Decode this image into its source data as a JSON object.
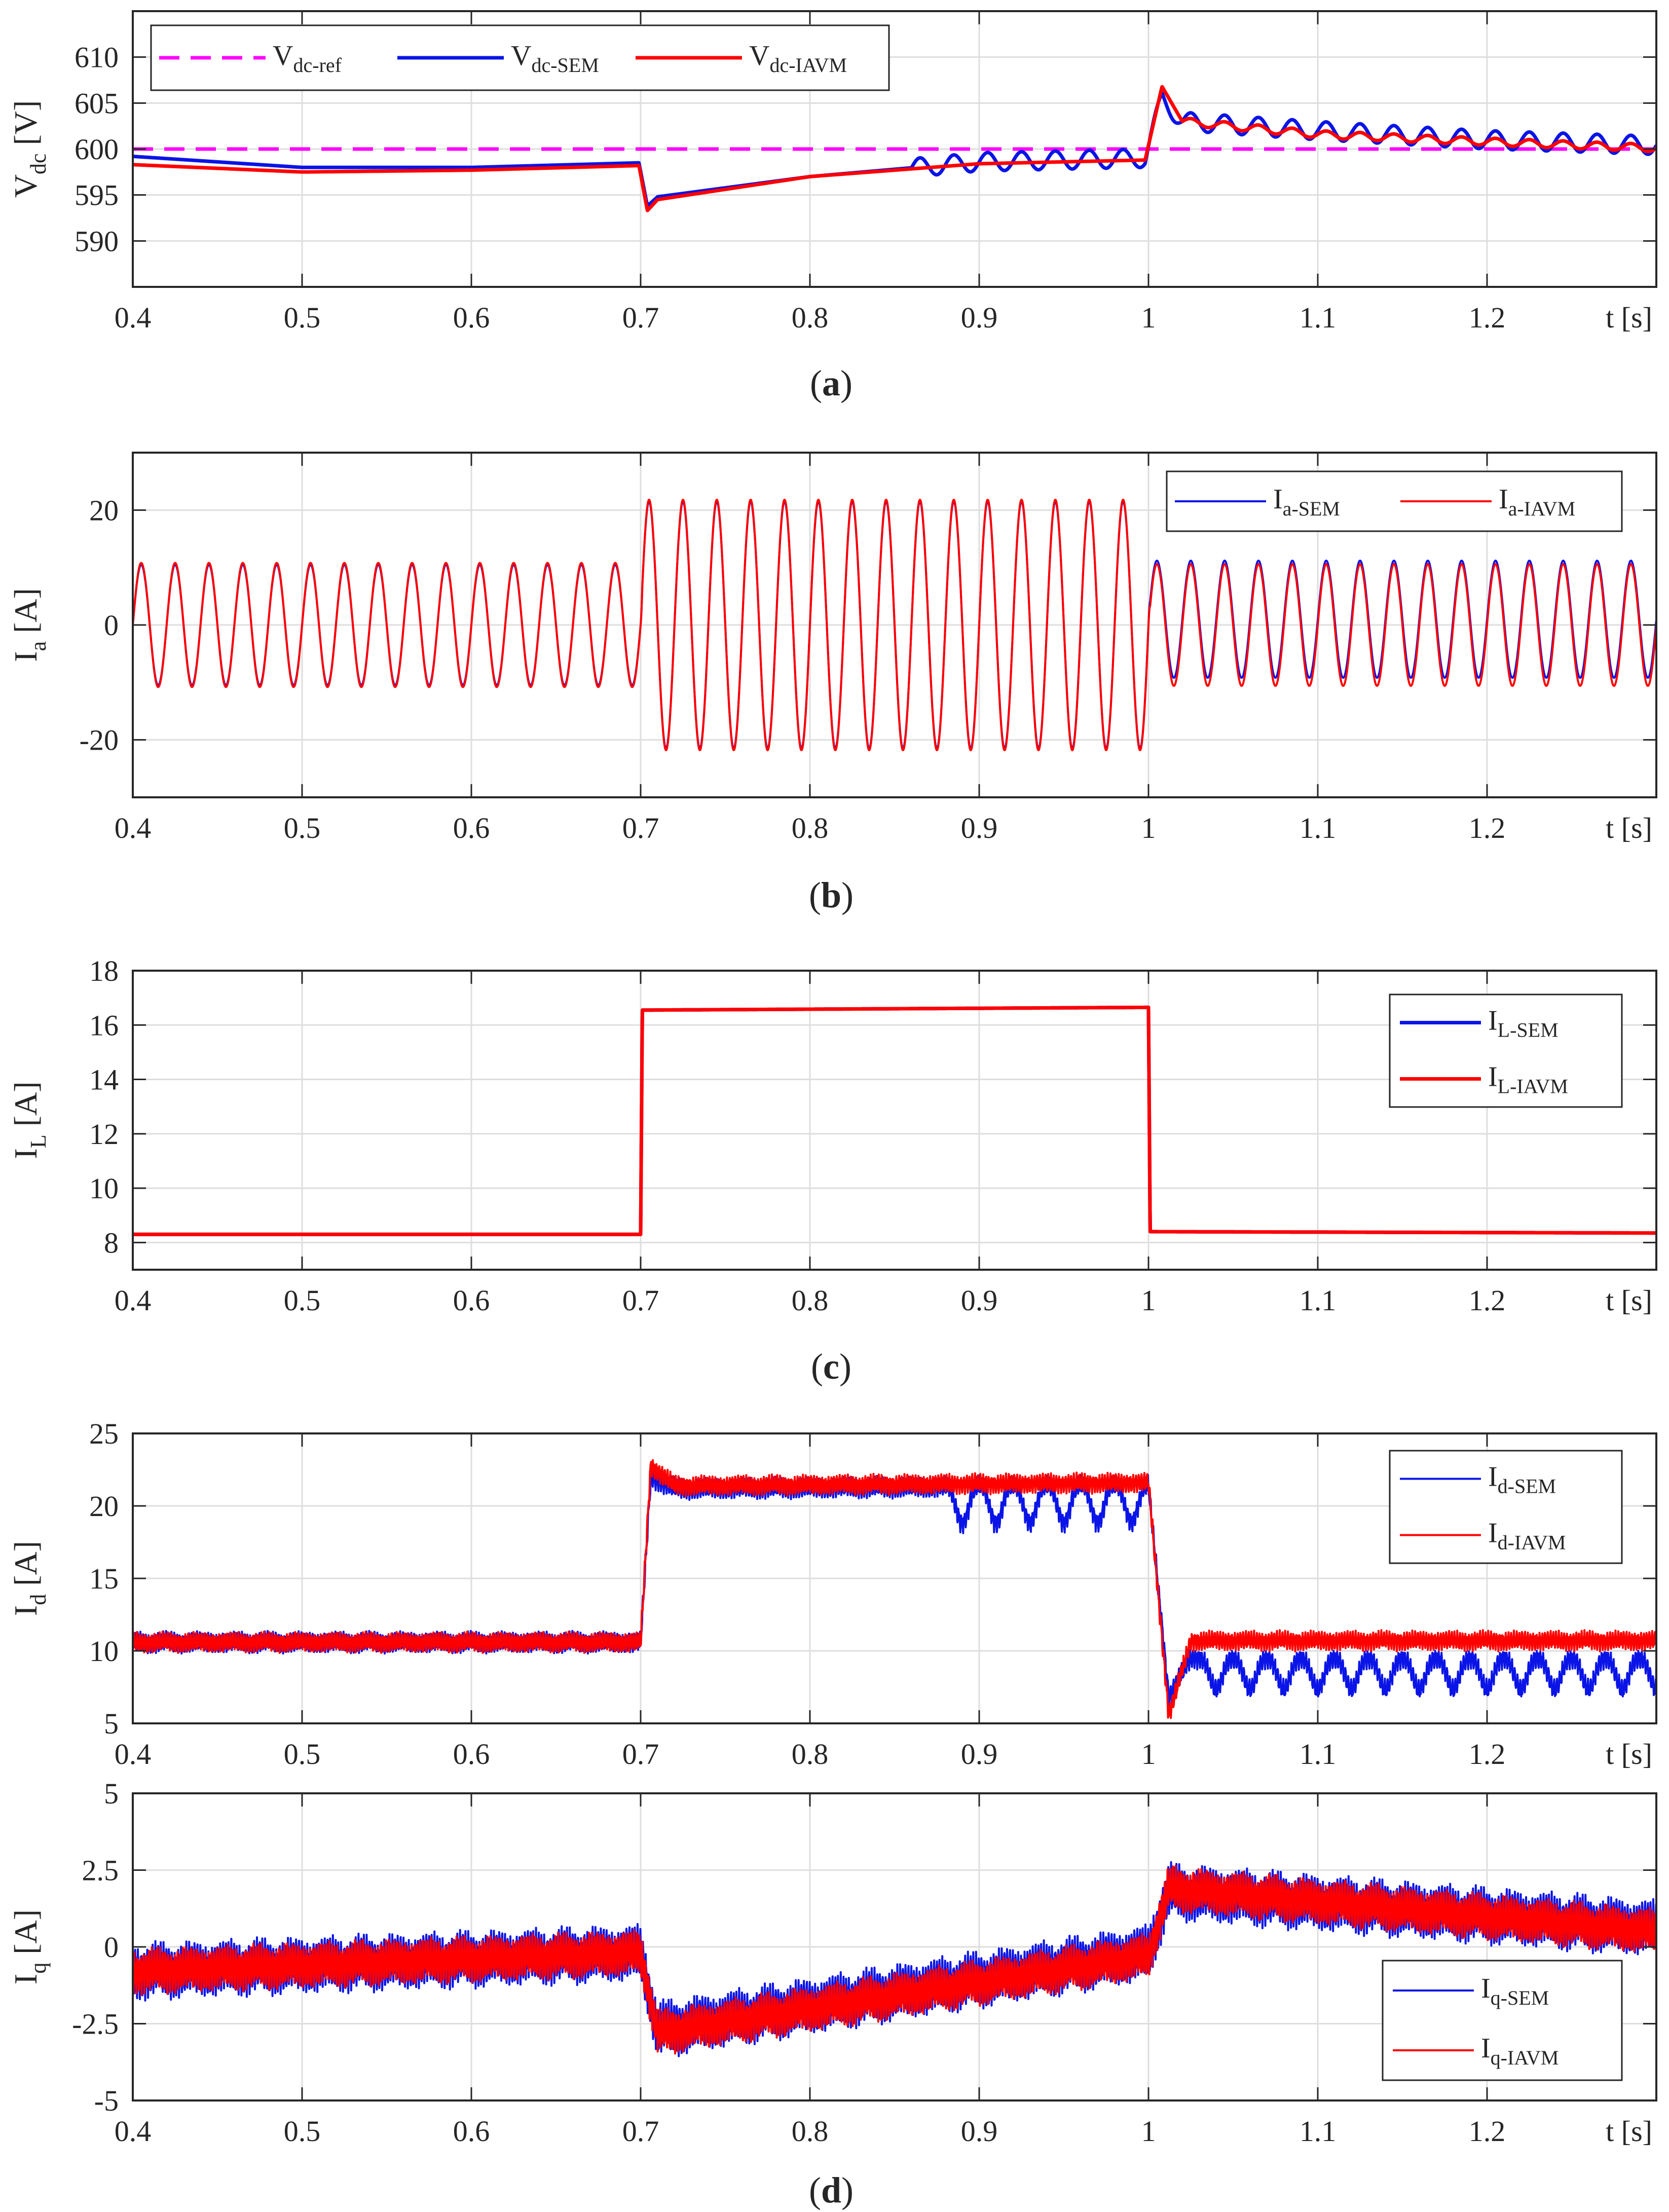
{
  "colors": {
    "sem": "#0a14e6",
    "iavm": "#ff0000",
    "ref": "#ff00ff",
    "axis": "#262626",
    "grid": "#dedede"
  },
  "chart_data": [
    {
      "type": "line",
      "id": "vdc",
      "caption": "(a)",
      "caption_bold": "a",
      "ylabel_main": "V",
      "ylabel_sub": "dc",
      "ylabel_unit": "[V]",
      "xlabel": "t [s]",
      "xlim": [
        0.4,
        1.3
      ],
      "ylim": [
        585,
        615
      ],
      "xticks": [
        0.4,
        0.5,
        0.6,
        0.7,
        0.8,
        0.9,
        1.0,
        1.1,
        1.2
      ],
      "xtick_labels": [
        "0.4",
        "0.5",
        "0.6",
        "0.7",
        "0.8",
        "0.9",
        "1",
        "1.1",
        "1.2"
      ],
      "yticks": [
        590,
        595,
        600,
        605,
        610
      ],
      "ytick_labels": [
        "590",
        "595",
        "600",
        "605",
        "610"
      ],
      "legend_position": "top-left",
      "legend_horizontal": true,
      "series": [
        {
          "name_main": "V",
          "name_sub": "dc-ref",
          "color": "#ff00ff",
          "dash": true,
          "keypoints": [
            [
              0.4,
              600
            ],
            [
              1.3,
              600
            ]
          ]
        },
        {
          "name_main": "V",
          "name_sub": "dc-SEM",
          "color": "#0a14e6",
          "keypoints": [
            [
              0.4,
              599.2
            ],
            [
              0.5,
              598.0
            ],
            [
              0.6,
              598.0
            ],
            [
              0.699,
              598.5
            ],
            [
              0.704,
              593.8
            ],
            [
              0.71,
              594.8
            ],
            [
              0.8,
              597.0
            ],
            [
              0.9,
              598.6
            ],
            [
              0.998,
              599.0
            ],
            [
              1.008,
              605.5
            ],
            [
              1.02,
              603.0
            ],
            [
              1.1,
              602.0
            ],
            [
              1.2,
              601.0
            ],
            [
              1.3,
              600.4
            ]
          ],
          "ripple": {
            "start": 0.86,
            "amp": 1.0,
            "freq": 50
          }
        },
        {
          "name_main": "V",
          "name_sub": "dc-IAVM",
          "color": "#ff0000",
          "keypoints": [
            [
              0.4,
              598.3
            ],
            [
              0.5,
              597.5
            ],
            [
              0.6,
              597.7
            ],
            [
              0.699,
              598.2
            ],
            [
              0.704,
              593.3
            ],
            [
              0.71,
              594.5
            ],
            [
              0.8,
              597.0
            ],
            [
              0.9,
              598.4
            ],
            [
              0.998,
              598.8
            ],
            [
              1.008,
              606.8
            ],
            [
              1.02,
              603.0
            ],
            [
              1.1,
              601.6
            ],
            [
              1.2,
              600.8
            ],
            [
              1.3,
              600.1
            ]
          ],
          "ripple": {
            "start": 1.02,
            "amp": 0.4,
            "freq": 50
          }
        }
      ]
    },
    {
      "type": "line",
      "id": "ia",
      "caption": "(b)",
      "caption_bold": "b",
      "ylabel_main": "I",
      "ylabel_sub": "a",
      "ylabel_unit": "[A]",
      "xlabel": "t [s]",
      "xlim": [
        0.4,
        1.3
      ],
      "ylim": [
        -30,
        30
      ],
      "xticks": [
        0.4,
        0.5,
        0.6,
        0.7,
        0.8,
        0.9,
        1.0,
        1.1,
        1.2
      ],
      "xtick_labels": [
        "0.4",
        "0.5",
        "0.6",
        "0.7",
        "0.8",
        "0.9",
        "1",
        "1.1",
        "1.2"
      ],
      "yticks": [
        -20,
        0,
        20
      ],
      "ytick_labels": [
        "-20",
        "0",
        "20"
      ],
      "legend_position": "top-right",
      "legend_horizontal": true,
      "series": [
        {
          "name_main": "I",
          "name_sub": "a-SEM",
          "color": "#0a14e6",
          "sine": {
            "freq": 50,
            "amps": [
              [
                0.4,
                10.5
              ],
              [
                0.7,
                10.5
              ],
              [
                0.701,
                21.5
              ],
              [
                1.0,
                21.5
              ],
              [
                1.001,
                10.2
              ],
              [
                1.3,
                10.2
              ]
            ],
            "offset": [
              [
                0.4,
                0
              ],
              [
                0.7,
                0
              ],
              [
                0.701,
                0
              ],
              [
                1.0,
                0
              ],
              [
                1.001,
                1.0
              ],
              [
                1.3,
                1.0
              ]
            ]
          }
        },
        {
          "name_main": "I",
          "name_sub": "a-IAVM",
          "color": "#ff0000",
          "sine": {
            "freq": 50,
            "amps": [
              [
                0.4,
                10.8
              ],
              [
                0.7,
                10.8
              ],
              [
                0.701,
                21.8
              ],
              [
                1.0,
                21.8
              ],
              [
                1.001,
                10.6
              ],
              [
                1.3,
                10.6
              ]
            ],
            "offset": [
              [
                0.4,
                0
              ],
              [
                1.3,
                0
              ]
            ]
          }
        }
      ]
    },
    {
      "type": "line",
      "id": "il",
      "caption": "(c)",
      "caption_bold": "c",
      "ylabel_main": "I",
      "ylabel_sub": "L",
      "ylabel_unit": "[A]",
      "xlabel": "t [s]",
      "xlim": [
        0.4,
        1.3
      ],
      "ylim": [
        7,
        18
      ],
      "xticks": [
        0.4,
        0.5,
        0.6,
        0.7,
        0.8,
        0.9,
        1.0,
        1.1,
        1.2
      ],
      "xtick_labels": [
        "0.4",
        "0.5",
        "0.6",
        "0.7",
        "0.8",
        "0.9",
        "1",
        "1.1",
        "1.2"
      ],
      "yticks": [
        8,
        10,
        12,
        14,
        16,
        18
      ],
      "ytick_labels": [
        "8",
        "10",
        "12",
        "14",
        "16",
        "18"
      ],
      "legend_position": "top-right",
      "legend_horizontal": false,
      "series": [
        {
          "name_main": "I",
          "name_sub": "L-SEM",
          "color": "#0a14e6",
          "keypoints": [
            [
              0.4,
              8.3
            ],
            [
              0.7,
              8.3
            ],
            [
              0.701,
              16.55
            ],
            [
              1.0,
              16.65
            ],
            [
              1.001,
              8.4
            ],
            [
              1.3,
              8.35
            ]
          ]
        },
        {
          "name_main": "I",
          "name_sub": "L-IAVM",
          "color": "#ff0000",
          "keypoints": [
            [
              0.4,
              8.3
            ],
            [
              0.7,
              8.3
            ],
            [
              0.701,
              16.55
            ],
            [
              1.0,
              16.65
            ],
            [
              1.001,
              8.4
            ],
            [
              1.3,
              8.35
            ]
          ]
        }
      ]
    },
    {
      "type": "line",
      "id": "id",
      "caption": "",
      "ylabel_main": "I",
      "ylabel_sub": "d",
      "ylabel_unit": "[A]",
      "xlabel": "t [s]",
      "xlim": [
        0.4,
        1.3
      ],
      "ylim": [
        5,
        25
      ],
      "xticks": [
        0.4,
        0.5,
        0.6,
        0.7,
        0.8,
        0.9,
        1.0,
        1.1,
        1.2
      ],
      "xtick_labels": [
        "0.4",
        "0.5",
        "0.6",
        "0.7",
        "0.8",
        "0.9",
        "1",
        "1.1",
        "1.2"
      ],
      "yticks": [
        5,
        10,
        15,
        20,
        25
      ],
      "ytick_labels": [
        "5",
        "10",
        "15",
        "20",
        "25"
      ],
      "legend_position": "top-right",
      "legend_horizontal": false,
      "series": [
        {
          "name_main": "I",
          "name_sub": "d-SEM",
          "color": "#0a14e6",
          "keypoints": [
            [
              0.4,
              10.6
            ],
            [
              0.7,
              10.6
            ],
            [
              0.706,
              22.0
            ],
            [
              0.72,
              21.2
            ],
            [
              1.0,
              21.4
            ],
            [
              1.012,
              6.8
            ],
            [
              1.025,
              9.5
            ],
            [
              1.3,
              9.5
            ]
          ],
          "noise": 0.8,
          "dips": {
            "start": 0.88,
            "end": 1.0,
            "depth": 2.5,
            "freq": 50
          },
          "dips2": {
            "start": 1.03,
            "end": 1.3,
            "depth": 2.2,
            "freq": 50
          }
        },
        {
          "name_main": "I",
          "name_sub": "d-IAVM",
          "color": "#ff0000",
          "keypoints": [
            [
              0.4,
              10.6
            ],
            [
              0.7,
              10.6
            ],
            [
              0.706,
              22.8
            ],
            [
              0.72,
              21.4
            ],
            [
              1.0,
              21.6
            ],
            [
              1.012,
              5.5
            ],
            [
              1.025,
              10.7
            ],
            [
              1.3,
              10.7
            ]
          ],
          "noise": 0.75
        }
      ]
    },
    {
      "type": "line",
      "id": "iq",
      "caption": "(d)",
      "caption_bold": "d",
      "ylabel_main": "I",
      "ylabel_sub": "q",
      "ylabel_unit": "[A]",
      "xlabel": "t [s]",
      "xlim": [
        0.4,
        1.3
      ],
      "ylim": [
        -5,
        5
      ],
      "xticks": [
        0.4,
        0.5,
        0.6,
        0.7,
        0.8,
        0.9,
        1.0,
        1.1,
        1.2
      ],
      "xtick_labels": [
        "0.4",
        "0.5",
        "0.6",
        "0.7",
        "0.8",
        "0.9",
        "1",
        "1.1",
        "1.2"
      ],
      "yticks": [
        -5,
        -2.5,
        0,
        2.5,
        5
      ],
      "ytick_labels": [
        "-5",
        "-2.5",
        "0",
        "2.5",
        "5"
      ],
      "legend_position": "bottom-right",
      "legend_horizontal": false,
      "series": [
        {
          "name_main": "I",
          "name_sub": "q-SEM",
          "color": "#0a14e6",
          "keypoints": [
            [
              0.4,
              -0.8
            ],
            [
              0.7,
              -0.2
            ],
            [
              0.71,
              -2.7
            ],
            [
              1.0,
              -0.2
            ],
            [
              1.012,
              1.8
            ],
            [
              1.3,
              0.6
            ]
          ],
          "noise": 1.0
        },
        {
          "name_main": "I",
          "name_sub": "q-IAVM",
          "color": "#ff0000",
          "keypoints": [
            [
              0.4,
              -0.8
            ],
            [
              0.7,
              -0.2
            ],
            [
              0.71,
              -2.8
            ],
            [
              1.0,
              -0.3
            ],
            [
              1.012,
              1.9
            ],
            [
              1.3,
              0.5
            ]
          ],
          "noise": 0.8
        }
      ]
    }
  ]
}
